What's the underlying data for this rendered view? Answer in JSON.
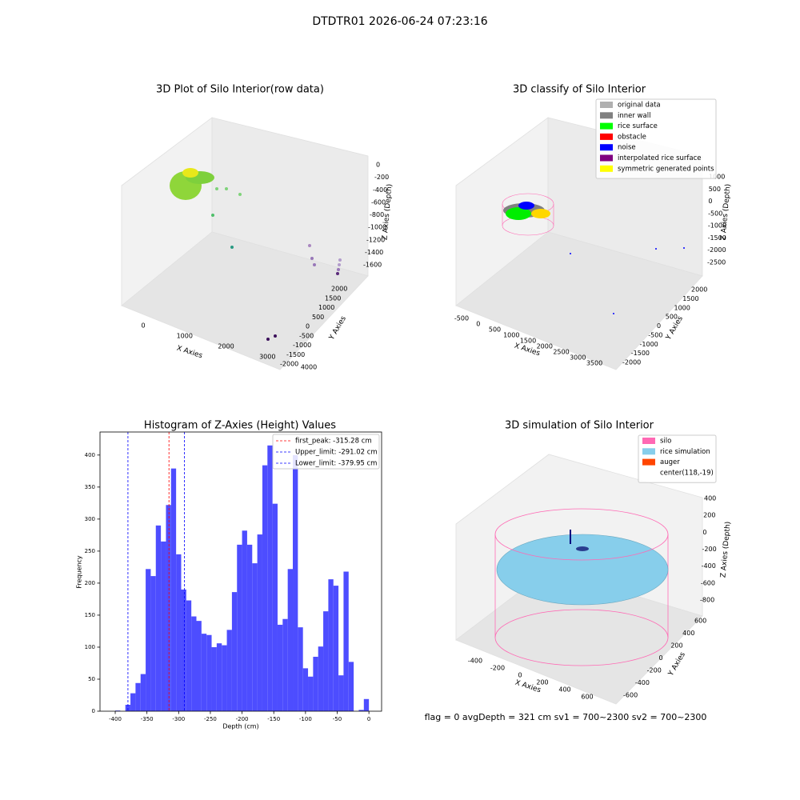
{
  "suptitle": "DTDTR01 2026-06-24 07:23:16",
  "status": "flag = 0     avgDepth = 321 cm  sv1 = 700~2300  sv2 = 700~2300",
  "chart_data": [
    {
      "type": "scatter3d",
      "title": "3D Plot of Silo Interior(row data)",
      "xlabel": "X Axies",
      "ylabel": "Y Axies",
      "zlabel": "Z Axies (Depth)",
      "xticks": [
        0,
        1000,
        2000,
        3000,
        4000
      ],
      "yticks": [
        -2000,
        -1500,
        -1000,
        -500,
        0,
        500,
        1000,
        1500,
        2000
      ],
      "zticks": [
        -1600,
        -1400,
        -1200,
        -1000,
        -800,
        -600,
        -400,
        -200,
        0
      ]
    },
    {
      "type": "scatter3d",
      "title": "3D classify of Silo Interior",
      "xlabel": "X Axies",
      "ylabel": "Y Axies",
      "zlabel": "Z Axies (Depth)",
      "xticks": [
        -500,
        0,
        500,
        1000,
        1500,
        2000,
        2500,
        3000,
        3500
      ],
      "yticks": [
        -2000,
        -1500,
        -1000,
        -500,
        0,
        500,
        1000,
        1500,
        2000
      ],
      "zticks": [
        -2500,
        -2000,
        -1500,
        -1000,
        -500,
        0,
        500,
        1000
      ],
      "series": [
        {
          "name": "original data",
          "color": "#b0b0b0"
        },
        {
          "name": "inner wall",
          "color": "#808080"
        },
        {
          "name": "rice surface",
          "color": "#00ff00"
        },
        {
          "name": "obstacle",
          "color": "#ff0000"
        },
        {
          "name": "noise",
          "color": "#0000ff"
        },
        {
          "name": "interpolated rice surface",
          "color": "#800080"
        },
        {
          "name": "symmetric generated points",
          "color": "#ffff00"
        }
      ]
    },
    {
      "type": "histogram",
      "title": "Histogram of Z-Axies (Height) Values",
      "xlabel": "Depth (cm)",
      "ylabel": "Frequency",
      "color": "#4d4dff",
      "bins": [
        -400,
        -392,
        -384,
        -376,
        -368,
        -360,
        -352,
        -344,
        -336,
        -328,
        -320,
        -312,
        -304,
        -296,
        -288,
        -280,
        -272,
        -264,
        -256,
        -248,
        -240,
        -232,
        -224,
        -216,
        -208,
        -200,
        -192,
        -184,
        -176,
        -168,
        -160,
        -152,
        -144,
        -136,
        -128,
        -120,
        -112,
        -104,
        -96,
        -88,
        -80,
        -72,
        -64,
        -56,
        -48,
        -40,
        -32,
        -24,
        -16,
        -8,
        0
      ],
      "values": [
        1,
        0,
        10,
        28,
        44,
        58,
        222,
        211,
        290,
        265,
        322,
        379,
        245,
        190,
        173,
        148,
        141,
        121,
        119,
        100,
        106,
        103,
        127,
        186,
        260,
        282,
        260,
        231,
        276,
        384,
        415,
        324,
        135,
        144,
        222,
        400,
        131,
        67,
        54,
        85,
        101,
        156,
        206,
        196,
        56,
        218,
        77,
        0,
        2,
        19
      ],
      "xlim": [
        -424,
        20
      ],
      "ylim": [
        0,
        436
      ],
      "xticks": [
        -400,
        -350,
        -300,
        -250,
        -200,
        -150,
        -100,
        -50,
        0
      ],
      "yticks": [
        0,
        50,
        100,
        150,
        200,
        250,
        300,
        350,
        400
      ],
      "vlines": [
        {
          "name": "first_peak: -315.28 cm",
          "value": -315.28,
          "color": "#ff0000"
        },
        {
          "name": "Upper_limit: -291.02 cm",
          "value": -291.02,
          "color": "#0000ff"
        },
        {
          "name": "Lower_limit: -379.95 cm",
          "value": -379.95,
          "color": "#0000ff"
        }
      ]
    },
    {
      "type": "scatter3d",
      "title": "3D simulation of Silo Interior",
      "xlabel": "X Axies",
      "ylabel": "Y Axies",
      "zlabel": "Z Axies (Depth)",
      "xticks": [
        -400,
        -200,
        0,
        200,
        400,
        600
      ],
      "yticks": [
        -600,
        -400,
        -200,
        0,
        200,
        400,
        600
      ],
      "zticks": [
        -800,
        -600,
        -400,
        -200,
        0,
        200,
        400
      ],
      "series": [
        {
          "name": "silo",
          "color": "#ff69b4"
        },
        {
          "name": "rice simulation",
          "color": "#87ceeb"
        },
        {
          "name": "auger",
          "color": "#ff4500"
        },
        {
          "name": "center(118,-19)"
        }
      ]
    }
  ]
}
